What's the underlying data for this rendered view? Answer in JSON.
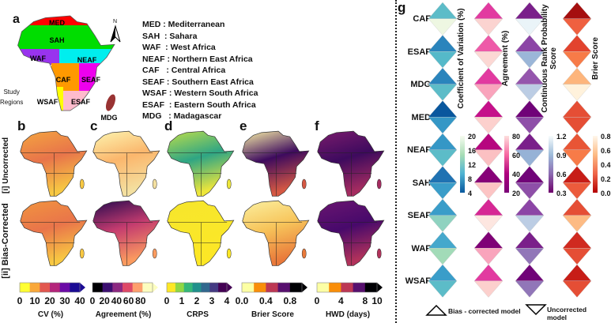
{
  "panel_a": {
    "label": "a",
    "north": "N",
    "study_regions": "Study\nRegions",
    "map_regions": [
      {
        "code": "MED",
        "color": "#ff0000"
      },
      {
        "code": "SAH",
        "color": "#00dd00"
      },
      {
        "code": "WAF",
        "color": "#9933ee"
      },
      {
        "code": "NEAF",
        "color": "#00eeee"
      },
      {
        "code": "CAF",
        "color": "#ff9900"
      },
      {
        "code": "SEAF",
        "color": "#ee00ee"
      },
      {
        "code": "WSAF",
        "color": "#ffff00"
      },
      {
        "code": "ESAF",
        "color": "#ffbbcc"
      },
      {
        "code": "MDG",
        "color": "#993333"
      }
    ],
    "legend": [
      "MED : Mediterranean",
      "SAH  : Sahara",
      "WAF  : West Africa",
      "NEAF : Northern East Africa",
      "CAF   : Central Africa",
      "SEAF : Southern East Africa",
      "WSAF : Western South Africa",
      "ESAF  : Eastern South Africa",
      "MDG   : Madagascar"
    ]
  },
  "row_labels": [
    "[i] Uncorrected",
    "[ii] Bias-Corrected"
  ],
  "panels": [
    {
      "label": "b",
      "title": "CV (%)",
      "ticks": [
        "0",
        "10",
        "20",
        "30",
        "40"
      ],
      "colors": [
        "#ffff33",
        "#f9a83a",
        "#e2574f",
        "#b4257b",
        "#6b0aa6",
        "#1b0b94"
      ],
      "uncorr": [
        "#f4a540",
        "#e8744a",
        "#f7c843"
      ],
      "bias": [
        "#f1953f",
        "#e9744a",
        "#f8c842"
      ]
    },
    {
      "label": "c",
      "title": "Agreement (%)",
      "ticks": [
        "0",
        "20",
        "40",
        "60",
        "80"
      ],
      "colors": [
        "#000004",
        "#3b0f70",
        "#8c2981",
        "#de4968",
        "#fe9f6d",
        "#fcfdbf"
      ],
      "uncorr": [
        "#fcf5b0",
        "#fbb66c",
        "#f4e0a0"
      ],
      "bias": [
        "#27094f",
        "#c43c6f",
        "#fb9b5f"
      ]
    },
    {
      "label": "d",
      "title": "CRPS",
      "ticks": [
        "0",
        "1",
        "2",
        "3",
        "4"
      ],
      "colors": [
        "#fde725",
        "#8fd744",
        "#35b779",
        "#21908c",
        "#31688e",
        "#443a83",
        "#440154"
      ],
      "uncorr": [
        "#bede4a",
        "#2ea584",
        "#ede63b"
      ],
      "bias": [
        "#f6e62c",
        "#f9e72a",
        "#fde725"
      ]
    },
    {
      "label": "e",
      "title": "Brier Score",
      "ticks": [
        "0.0",
        "0.4",
        "0.8"
      ],
      "colors": [
        "#fcffa4",
        "#f98e09",
        "#bc3754",
        "#57106e",
        "#000004"
      ],
      "uncorr": [
        "#fcf4a8",
        "#3d0a5e",
        "#d55843"
      ],
      "bias": [
        "#fbf0a0",
        "#f7c45a",
        "#e9793a"
      ]
    },
    {
      "label": "f",
      "title": "HWD (days)",
      "ticks": [
        "0",
        "4",
        "8",
        "10"
      ],
      "colors": [
        "#fcffa4",
        "#f98e09",
        "#bc3754",
        "#57106e",
        "#000004"
      ],
      "uncorr": [
        "#7a1c6c",
        "#3d0a5e",
        "#a52c60"
      ],
      "bias": [
        "#6a1670",
        "#47096b",
        "#b2325b"
      ]
    }
  ],
  "panel_g": {
    "label": "g",
    "regions": [
      "CAF",
      "ESAF",
      "MDG",
      "MED",
      "NEAF",
      "SAH",
      "SEAF",
      "WAF",
      "WSAF"
    ],
    "metrics": [
      {
        "title": "Coefficient of Variation (%)",
        "ticks": [
          "20",
          "16",
          "12",
          "8",
          "4"
        ],
        "gradient": [
          "#f7fcf0",
          "#a8ddb5",
          "#4eb3d3",
          "#08589e"
        ]
      },
      {
        "title": "Agreement (%)",
        "ticks": [
          "80",
          "60",
          "40",
          "20"
        ],
        "gradient": [
          "#fde0dd",
          "#f768a1",
          "#ae017e",
          "#7a0177"
        ]
      },
      {
        "title": "Continuous Rank Probability\nScore",
        "ticks": [
          "1.2",
          "0.9",
          "0.6",
          "0.3"
        ],
        "gradient": [
          "#f7fcfd",
          "#9ebcda",
          "#8c6bb1",
          "#6e016b"
        ]
      },
      {
        "title": "Brier Score",
        "ticks": [
          "0.8",
          "0.6",
          "0.4",
          "0.2",
          "0.0"
        ],
        "gradient": [
          "#fff7ec",
          "#fdbb84",
          "#ef6548",
          "#b30000"
        ]
      }
    ],
    "cells": [
      [
        "#5cbcc8",
        "#eef7e2",
        "#e23aa0",
        "#fbd3d0",
        "#7a1f8a",
        "#eaf4f8",
        "#a50f0f",
        "#ef6040"
      ],
      [
        "#2a84bc",
        "#55b9c9",
        "#ee5aa8",
        "#fcd8d4",
        "#8c45a6",
        "#9bb6d8",
        "#e2432e",
        "#f77b48"
      ],
      [
        "#2a84bc",
        "#5cbcc8",
        "#e23aa0",
        "#f9a4bc",
        "#9556ad",
        "#bccde4",
        "#fdb57c",
        "#fff2dc"
      ],
      [
        "#09579e",
        "#3597c6",
        "#c5108a",
        "#fcd0cd",
        "#700378",
        "#8e4fa8",
        "#e54e35",
        "#e54e35"
      ],
      [
        "#3597c6",
        "#5cbcc8",
        "#b6067f",
        "#fbc0c2",
        "#7a1f8a",
        "#96b2d6",
        "#e85535",
        "#f77b48"
      ],
      [
        "#1f72b2",
        "#3a9dc9",
        "#870178",
        "#fcc4c4",
        "#700378",
        "#8e4fa8",
        "#c71d17",
        "#ec5b3c"
      ],
      [
        "#3a9dc9",
        "#8fd2c0",
        "#d62794",
        "#fde6e0",
        "#8c45a6",
        "#bccde4",
        "#e54e35",
        "#fdbb84"
      ],
      [
        "#45a8cc",
        "#a2dbb8",
        "#7f0176",
        "#f9a4bc",
        "#7a1f8a",
        "#9176b8",
        "#d02a20",
        "#e54e35"
      ],
      [
        "#3a9dc9",
        "#5cbcc8",
        "#e23aa0",
        "#fcd0cd",
        "#700378",
        "#9176b8",
        "#c71d17",
        "#e54e35"
      ]
    ],
    "legend_bias": "Bias - corrected model",
    "legend_uncorr": "Uncorrected model"
  }
}
